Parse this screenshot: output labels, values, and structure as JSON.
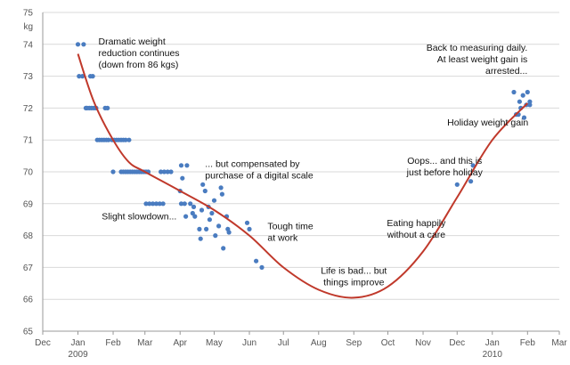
{
  "chart_data": {
    "type": "scatter",
    "y_unit": "kg",
    "ylim": [
      65,
      75
    ],
    "yticks": [
      65,
      66,
      67,
      68,
      69,
      70,
      71,
      72,
      73,
      74,
      75
    ],
    "xlim": [
      "2008-12-01",
      "2010-03-01"
    ],
    "xtick_labels": [
      "Dec",
      "Jan",
      "Feb",
      "Mar",
      "Apr",
      "May",
      "Jun",
      "Jul",
      "Aug",
      "Sep",
      "Oct",
      "Nov",
      "Dec",
      "Jan",
      "Feb",
      "Mar"
    ],
    "year_labels": [
      "2009",
      "2010"
    ],
    "grid": "horizontal",
    "colors": {
      "points": "#4a7cc0",
      "trend": "#c0392b",
      "grid": "#d9d9d9",
      "axis": "#999999"
    },
    "series": [
      {
        "type": "scatter",
        "points": [
          [
            "2009-01-01",
            74
          ],
          [
            "2009-01-06",
            74
          ],
          [
            "2009-01-02",
            73
          ],
          [
            "2009-01-05",
            73
          ],
          [
            "2009-01-12",
            73
          ],
          [
            "2009-01-14",
            73
          ],
          [
            "2009-01-08",
            72
          ],
          [
            "2009-01-09",
            72
          ],
          [
            "2009-01-11",
            72
          ],
          [
            "2009-01-13",
            72
          ],
          [
            "2009-01-15",
            72
          ],
          [
            "2009-01-17",
            72
          ],
          [
            "2009-01-25",
            72
          ],
          [
            "2009-01-27",
            72
          ],
          [
            "2009-01-18",
            71
          ],
          [
            "2009-01-20",
            71
          ],
          [
            "2009-01-22",
            71
          ],
          [
            "2009-01-24",
            71
          ],
          [
            "2009-01-26",
            71
          ],
          [
            "2009-01-28",
            71
          ],
          [
            "2009-01-31",
            71
          ],
          [
            "2009-02-02",
            71
          ],
          [
            "2009-02-04",
            71
          ],
          [
            "2009-02-06",
            71
          ],
          [
            "2009-02-08",
            71
          ],
          [
            "2009-02-10",
            71
          ],
          [
            "2009-02-12",
            71
          ],
          [
            "2009-02-15",
            71
          ],
          [
            "2009-02-01",
            70
          ],
          [
            "2009-02-08",
            70
          ],
          [
            "2009-02-10",
            70
          ],
          [
            "2009-02-12",
            70
          ],
          [
            "2009-02-14",
            70
          ],
          [
            "2009-02-16",
            70
          ],
          [
            "2009-02-18",
            70
          ],
          [
            "2009-02-20",
            70
          ],
          [
            "2009-02-22",
            70
          ],
          [
            "2009-02-24",
            70
          ],
          [
            "2009-02-26",
            70
          ],
          [
            "2009-02-28",
            70
          ],
          [
            "2009-03-02",
            70
          ],
          [
            "2009-03-04",
            70
          ],
          [
            "2009-03-15",
            70
          ],
          [
            "2009-03-18",
            70
          ],
          [
            "2009-03-21",
            70
          ],
          [
            "2009-03-24",
            70
          ],
          [
            "2009-03-02",
            69
          ],
          [
            "2009-03-05",
            69
          ],
          [
            "2009-03-08",
            69
          ],
          [
            "2009-03-11",
            69
          ],
          [
            "2009-03-14",
            69
          ],
          [
            "2009-03-17",
            69
          ],
          [
            "2009-04-02",
            70.2
          ],
          [
            "2009-04-03",
            69.8
          ],
          [
            "2009-04-01",
            69.4
          ],
          [
            "2009-04-02",
            69
          ],
          [
            "2009-04-05",
            69
          ],
          [
            "2009-04-07",
            70.2
          ],
          [
            "2009-04-10",
            69
          ],
          [
            "2009-04-06",
            68.6
          ],
          [
            "2009-04-14",
            68.6
          ],
          [
            "2009-04-12",
            68.7
          ],
          [
            "2009-04-13",
            68.9
          ],
          [
            "2009-04-18",
            68.2
          ],
          [
            "2009-04-19",
            67.9
          ],
          [
            "2009-04-20",
            68.8
          ],
          [
            "2009-04-21",
            69.6
          ],
          [
            "2009-04-23",
            69.4
          ],
          [
            "2009-04-26",
            68.9
          ],
          [
            "2009-04-24",
            68.2
          ],
          [
            "2009-04-27",
            68.5
          ],
          [
            "2009-04-29",
            68.7
          ],
          [
            "2009-05-01",
            69.1
          ],
          [
            "2009-05-02",
            68
          ],
          [
            "2009-05-05",
            68.3
          ],
          [
            "2009-05-07",
            69.5
          ],
          [
            "2009-05-08",
            69.3
          ],
          [
            "2009-05-09",
            67.6
          ],
          [
            "2009-05-12",
            68.6
          ],
          [
            "2009-05-13",
            68.2
          ],
          [
            "2009-05-14",
            68.1
          ],
          [
            "2009-05-30",
            68.4
          ],
          [
            "2009-06-01",
            68.2
          ],
          [
            "2009-06-07",
            67.2
          ],
          [
            "2009-06-12",
            67
          ],
          [
            "2009-12-01",
            69.6
          ],
          [
            "2009-12-13",
            69.7
          ],
          [
            "2009-12-15",
            70.2
          ],
          [
            "2010-01-20",
            72.5
          ],
          [
            "2010-01-22",
            71.8
          ],
          [
            "2010-01-24",
            71.8
          ],
          [
            "2010-01-25",
            72.2
          ],
          [
            "2010-01-26",
            72
          ],
          [
            "2010-01-28",
            72.4
          ],
          [
            "2010-01-29",
            71.7
          ],
          [
            "2010-02-01",
            72.5
          ],
          [
            "2010-02-03",
            72.1
          ],
          [
            "2010-01-31",
            72.1
          ],
          [
            "2010-02-03",
            72.2
          ]
        ]
      },
      {
        "type": "line",
        "points": [
          [
            "2009-01-01",
            73.7
          ],
          [
            "2009-01-15",
            72.2
          ],
          [
            "2009-02-01",
            71
          ],
          [
            "2009-02-15",
            70.3
          ],
          [
            "2009-03-01",
            70
          ],
          [
            "2009-04-01",
            69.4
          ],
          [
            "2009-05-01",
            68.8
          ],
          [
            "2009-06-01",
            68
          ],
          [
            "2009-07-01",
            67
          ],
          [
            "2009-08-01",
            66.3
          ],
          [
            "2009-09-01",
            66.05
          ],
          [
            "2009-10-01",
            66.4
          ],
          [
            "2009-11-01",
            67.5
          ],
          [
            "2009-12-01",
            69.2
          ],
          [
            "2010-01-01",
            71
          ],
          [
            "2010-02-01",
            72.15
          ]
        ]
      }
    ],
    "annotations": [
      {
        "lines": [
          "Dramatic weight",
          "reduction continues",
          "(down from 86 kgs)"
        ],
        "x": "2009-01-19",
        "y": 74,
        "align": "start"
      },
      {
        "lines": [
          "Slight slowdown..."
        ],
        "x": "2009-01-22",
        "y": 68.5,
        "align": "start"
      },
      {
        "lines": [
          "... but compensated by",
          "purchase of a digital scale"
        ],
        "x": "2009-04-23",
        "y": 70.15,
        "align": "start"
      },
      {
        "lines": [
          "Tough time",
          "at work"
        ],
        "x": "2009-06-17",
        "y": 68.2,
        "align": "start"
      },
      {
        "lines": [
          "Life is bad... but",
          "things improve"
        ],
        "x": "2009-09-01",
        "y": 66.8,
        "align": "middle"
      },
      {
        "lines": [
          "Eating happily",
          "without a care"
        ],
        "x": "2009-10-26",
        "y": 68.3,
        "align": "middle"
      },
      {
        "lines": [
          "Oops... and this is",
          "just before holiday"
        ],
        "x": "2009-11-20",
        "y": 70.25,
        "align": "middle"
      },
      {
        "lines": [
          "Holiday weight gain"
        ],
        "x": "2009-12-28",
        "y": 71.45,
        "align": "middle"
      },
      {
        "lines": [
          "Back to measuring daily.",
          "At least weight gain is",
          "arrested..."
        ],
        "x": "2010-02-01",
        "y": 73.8,
        "align": "end"
      }
    ]
  }
}
